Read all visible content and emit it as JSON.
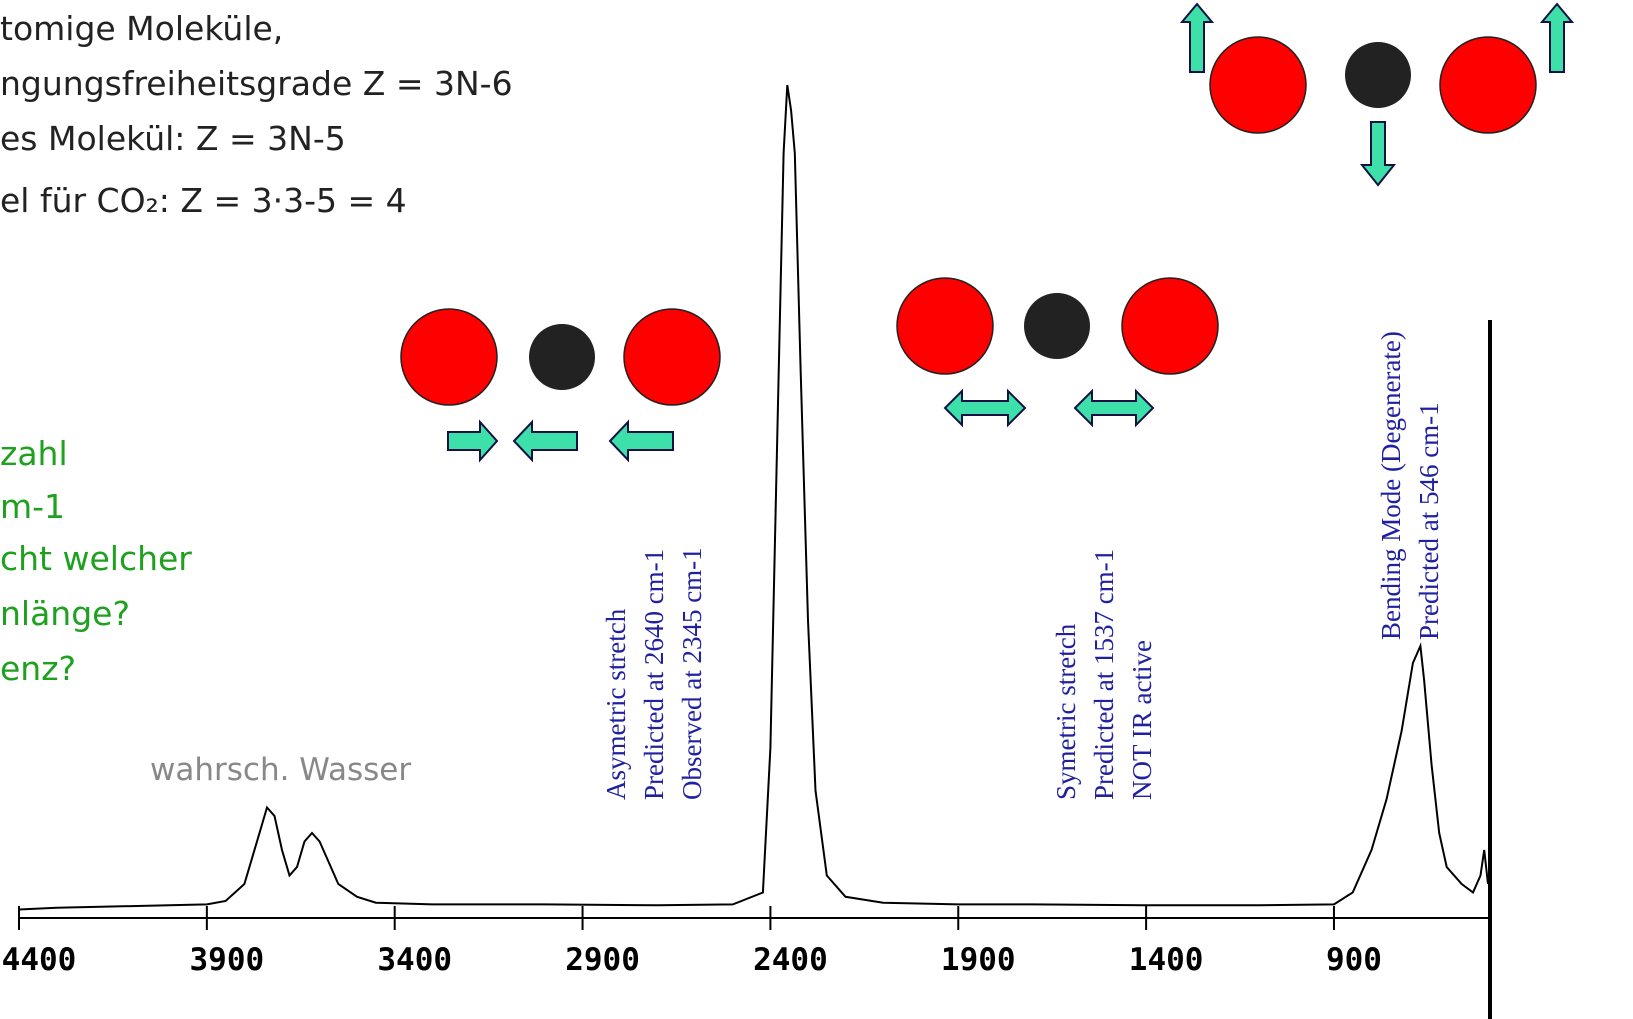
{
  "slide": {
    "lines": [
      "tomige Moleküle,",
      "ngungsfreiheitsgrade Z = 3N-6",
      "es Molekül: Z = 3N-5",
      "el für CO₂: Z = 3·3-5 = 4"
    ],
    "questions": [
      "zahl",
      "m-1",
      "cht welcher",
      "nlänge?",
      "enz?"
    ],
    "water_note": "wahrsch. Wasser"
  },
  "chart_data": {
    "type": "line",
    "color": "#000000",
    "x": [
      4400,
      4300,
      4100,
      3900,
      3850,
      3800,
      3760,
      3740,
      3720,
      3700,
      3680,
      3660,
      3640,
      3620,
      3600,
      3580,
      3550,
      3500,
      3450,
      3300,
      3000,
      2700,
      2500,
      2420,
      2400,
      2380,
      2365,
      2355,
      2345,
      2335,
      2320,
      2300,
      2280,
      2250,
      2200,
      2100,
      1900,
      1700,
      1400,
      1100,
      900,
      850,
      800,
      760,
      720,
      690,
      670,
      660,
      640,
      620,
      600,
      560,
      530,
      510,
      500,
      490
    ],
    "values": [
      1.0,
      1.2,
      1.4,
      1.6,
      2,
      4,
      10,
      13,
      12,
      8,
      5,
      6,
      9,
      10,
      9,
      7,
      4,
      2.5,
      1.8,
      1.6,
      1.6,
      1.5,
      1.6,
      3,
      20,
      60,
      90,
      98,
      95,
      90,
      65,
      35,
      15,
      5,
      2.5,
      1.8,
      1.6,
      1.6,
      1.5,
      1.5,
      1.6,
      3,
      8,
      14,
      22,
      30,
      32,
      28,
      18,
      10,
      6,
      4,
      3,
      5,
      8,
      4
    ],
    "xlim": [
      4400,
      490
    ],
    "ylim": [
      0,
      100
    ],
    "xticks": [
      4400,
      3900,
      3400,
      2900,
      2400,
      1900,
      1400,
      900
    ],
    "annotations": [
      {
        "lines": [
          "Asymetric stretch",
          "Predicted at 2640 cm-1",
          "Observed at 2345 cm-1"
        ]
      },
      {
        "lines": [
          "Symetric stretch",
          "Predicted at 1537 cm-1",
          "NOT IR active"
        ]
      },
      {
        "lines": [
          "Bending Mode (Degenerate)",
          "Predicted at 546 cm-1"
        ]
      }
    ]
  }
}
